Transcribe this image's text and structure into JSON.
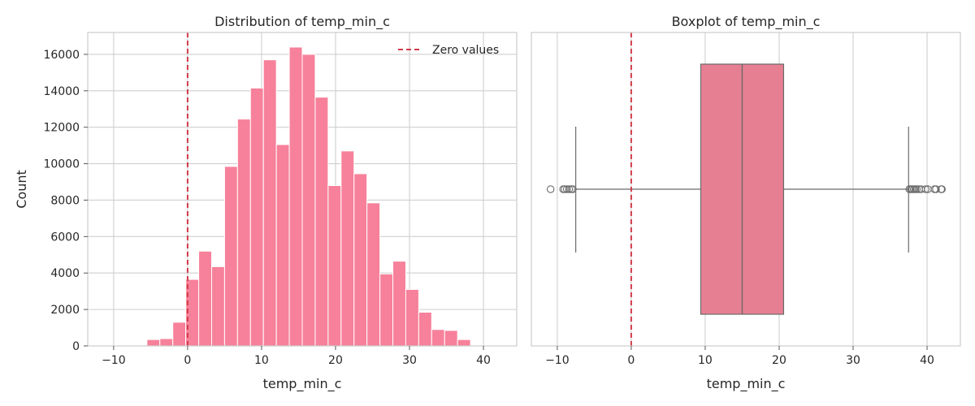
{
  "colors": {
    "hist_bar": "#f7819a",
    "box_fill": "#e77f93",
    "box_edge": "#6b6b6b",
    "zero_line": "#d33a49",
    "grid": "#cfcfcf",
    "spine": "#cccccc"
  },
  "chart_data": [
    {
      "type": "bar",
      "title": "Distribution of temp_min_c",
      "xlabel": "temp_min_c",
      "ylabel": "Count",
      "xlim": [
        -13.5,
        44.5
      ],
      "ylim": [
        0,
        17200
      ],
      "xticks": [
        -10,
        0,
        10,
        20,
        30,
        40
      ],
      "xtick_labels": [
        "−10",
        "0",
        "10",
        "20",
        "30",
        "40"
      ],
      "yticks": [
        0,
        2000,
        4000,
        6000,
        8000,
        10000,
        12000,
        14000,
        16000
      ],
      "ytick_labels": [
        "0",
        "2000",
        "4000",
        "6000",
        "8000",
        "10000",
        "12000",
        "14000",
        "16000"
      ],
      "grid": true,
      "bin_edges": [
        -5.5,
        -3.75,
        -2.0,
        -0.25,
        1.5,
        3.25,
        5.0,
        6.75,
        8.5,
        10.25,
        12.0,
        13.75,
        15.5,
        17.25,
        19.0,
        20.75,
        22.5,
        24.25,
        26.0,
        27.75,
        29.5,
        31.25,
        33.0,
        34.75,
        36.5,
        38.25
      ],
      "counts": [
        350,
        400,
        1300,
        3650,
        5200,
        4350,
        9850,
        12450,
        14150,
        15700,
        11050,
        16400,
        16000,
        13650,
        8800,
        10700,
        9450,
        7850,
        3950,
        4650,
        3100,
        1850,
        900,
        850,
        350
      ],
      "reference_line": {
        "x": 0,
        "label": "Zero values"
      },
      "legend": {
        "placement": "top-right",
        "entries": [
          "Zero values"
        ]
      }
    },
    {
      "type": "box",
      "title": "Boxplot of temp_min_c",
      "xlabel": "temp_min_c",
      "xlim": [
        -13.5,
        44.5
      ],
      "xticks": [
        -10,
        0,
        10,
        20,
        30,
        40
      ],
      "xtick_labels": [
        "−10",
        "0",
        "10",
        "20",
        "30",
        "40"
      ],
      "grid": true,
      "box": {
        "whisker_low": -7.5,
        "q1": 9.4,
        "median": 15.0,
        "q3": 20.6,
        "whisker_high": 37.5
      },
      "outliers": [
        -10.9,
        -9.2,
        -9.0,
        -8.7,
        -8.4,
        -8.1,
        -7.9,
        37.6,
        37.8,
        38.0,
        38.2,
        38.4,
        38.6,
        38.9,
        39.2,
        39.8,
        40.1,
        41.0,
        41.2,
        41.9,
        42.0
      ],
      "reference_line": {
        "x": 0
      }
    }
  ]
}
